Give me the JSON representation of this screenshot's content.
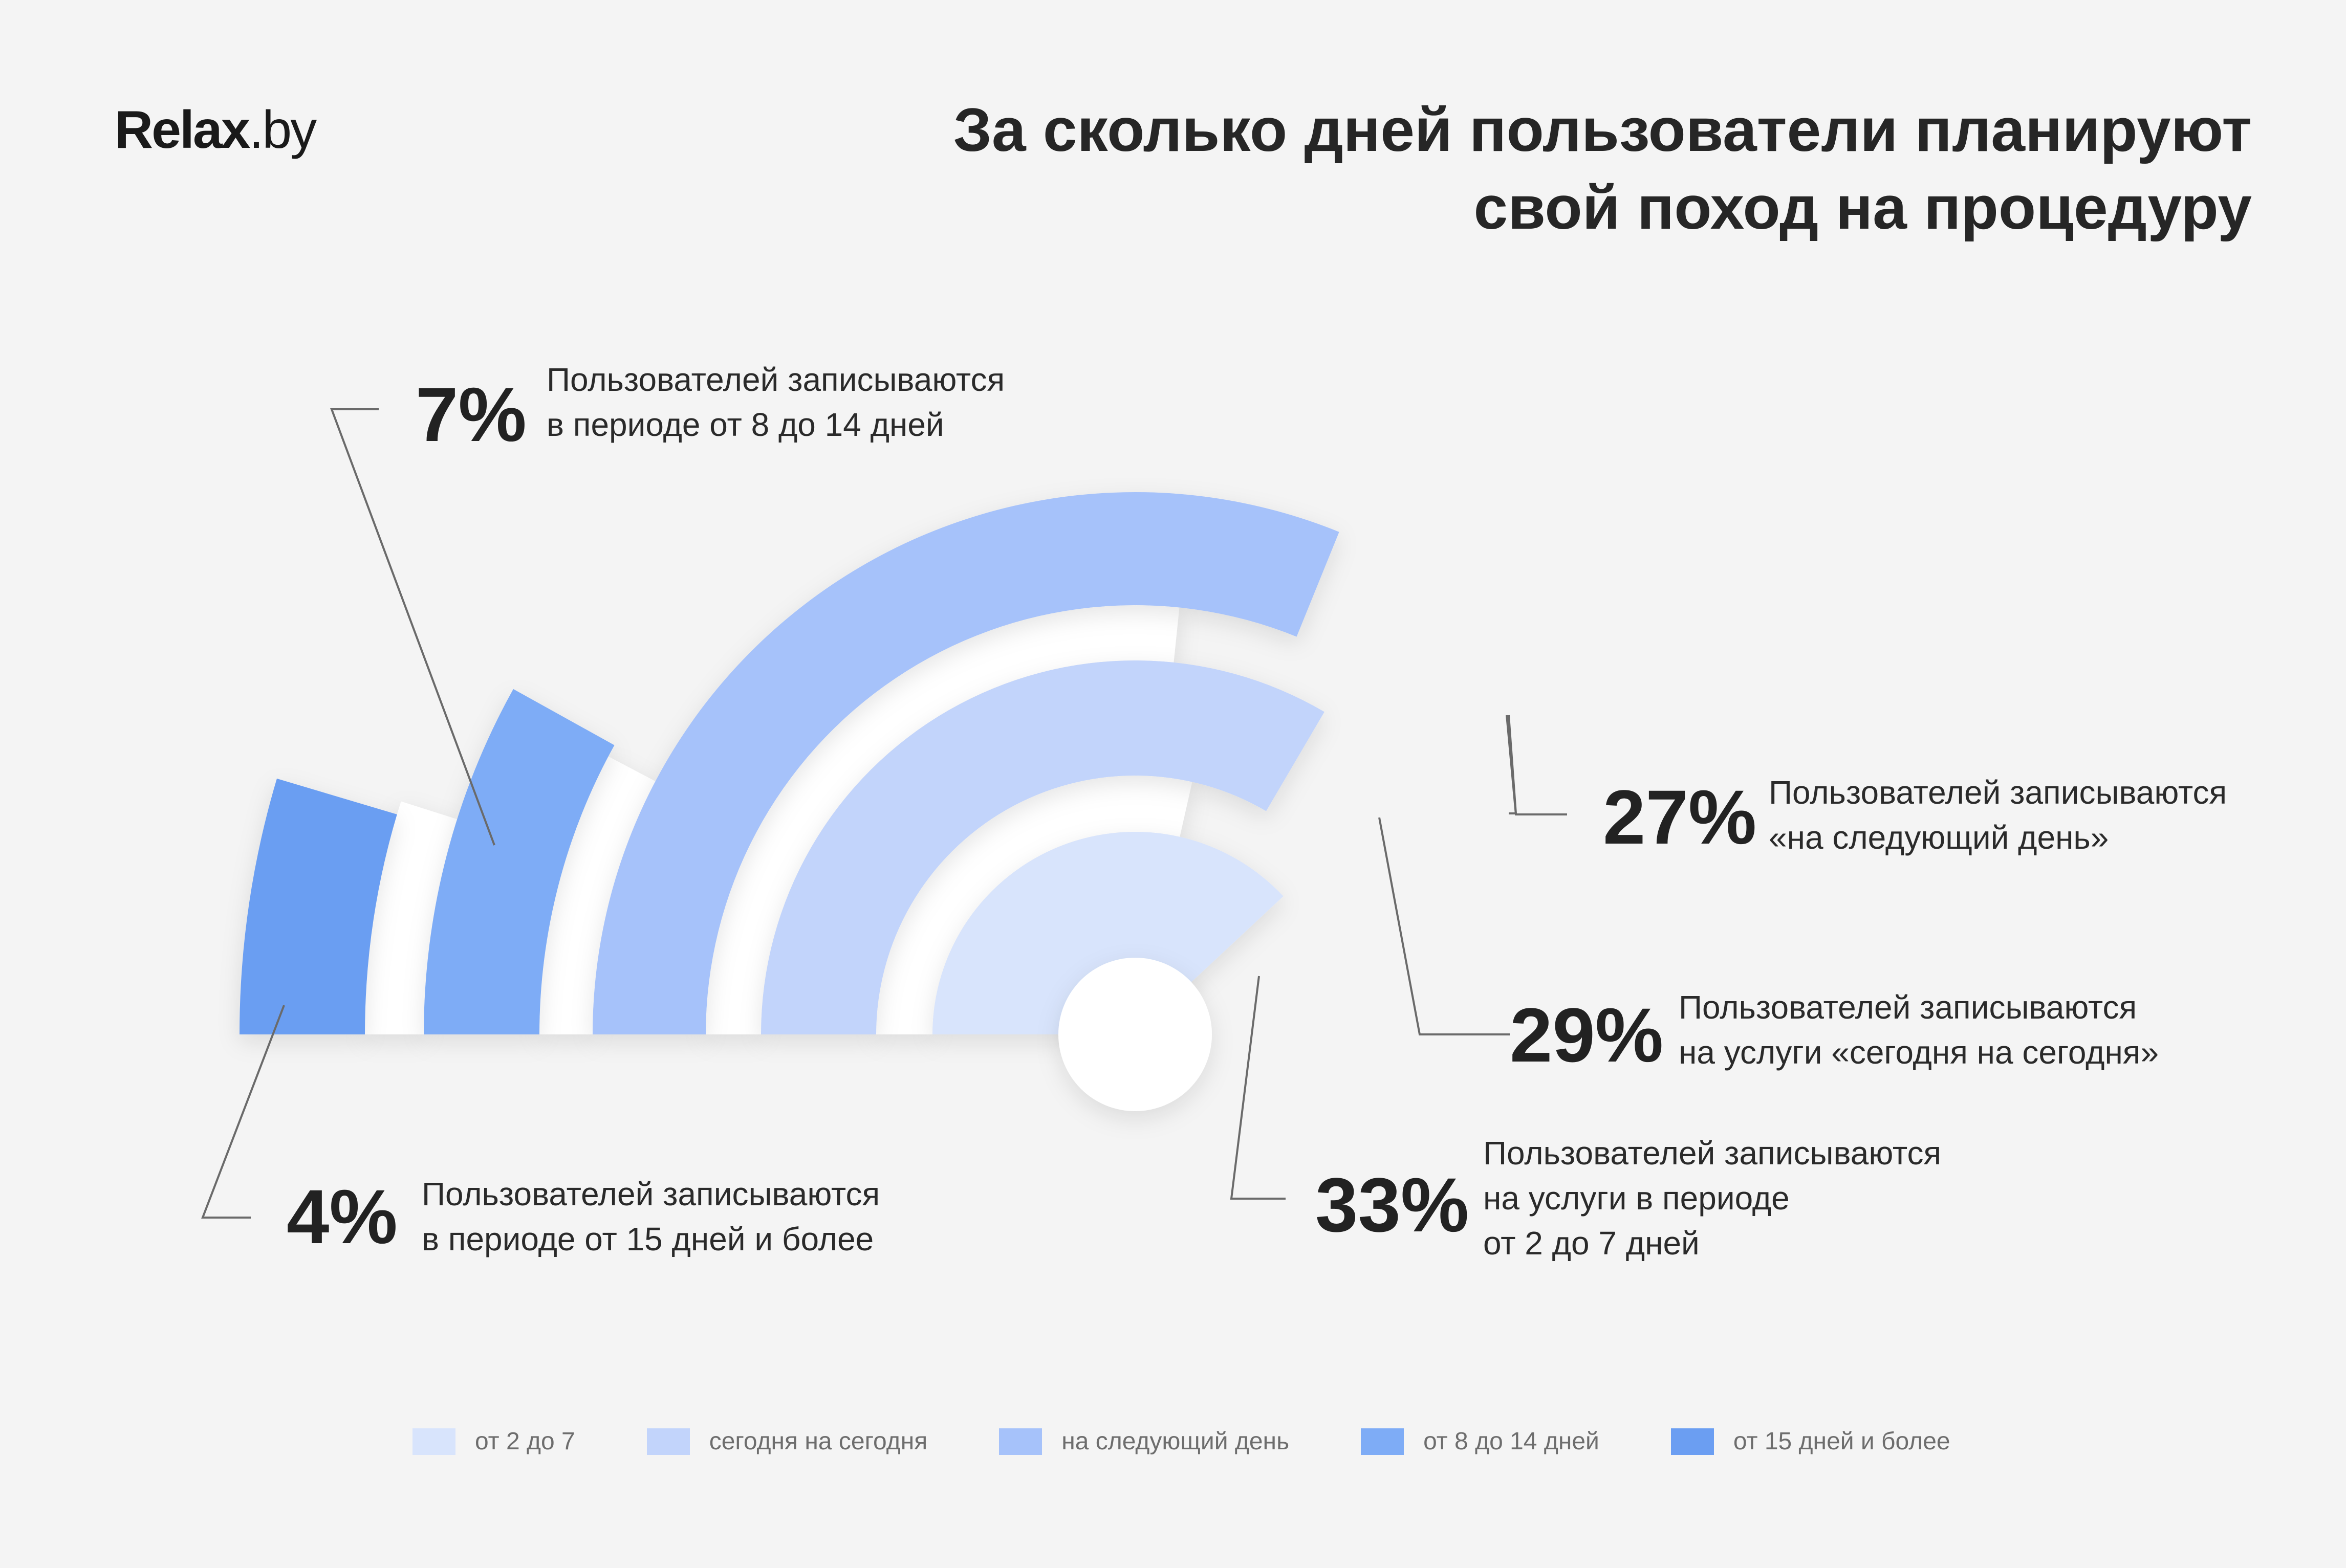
{
  "brand": {
    "logo_main": "Relax",
    "logo_suffix": ".by"
  },
  "title_lines": [
    "За сколько дней пользователи планируют",
    "свой поход на процедуру"
  ],
  "colors": {
    "background": "#f4f4f4",
    "gap": "#ffffff",
    "from_2_to_7": "#d8e4fc",
    "today": "#c2d4fb",
    "next_day": "#a6c2fa",
    "from_8_to_14": "#7eacf6",
    "from_15": "#6b9ef2"
  },
  "callouts": {
    "c7": {
      "value": "7%",
      "line1": "Пользователей записываются",
      "line2": "в периоде от 8 до 14 дней"
    },
    "c27": {
      "value": "27%",
      "line1": "Пользователей записываются",
      "line2": "«на следующий день»"
    },
    "c29": {
      "value": "29%",
      "line1": "Пользователей записываются",
      "line2": "на услуги «сегодня на сегодня»"
    },
    "c33": {
      "value": "33%",
      "line1": "Пользователей записываются",
      "line2": "на услуги в периоде",
      "line3": "от 2 до 7 дней"
    },
    "c4": {
      "value": "4%",
      "line1": "Пользователей записываются",
      "line2": "в периоде от 15 дней и более"
    }
  },
  "legend": [
    {
      "label": "от 2 до 7",
      "color": "#d8e4fc"
    },
    {
      "label": "сегодня на сегодня",
      "color": "#c2d4fb"
    },
    {
      "label": "на следующий день",
      "color": "#a6c2fa"
    },
    {
      "label": "от 8 до 14 дней",
      "color": "#7eacf6"
    },
    {
      "label": "от 15 дней и более",
      "color": "#6b9ef2"
    }
  ],
  "chart_data": {
    "type": "pie",
    "title": "За сколько дней пользователи планируют свой поход на процедуру",
    "categories": [
      "от 2 до 7",
      "сегодня на сегодня",
      "на следующий день",
      "от 8 до 14 дней",
      "от 15 дней и более"
    ],
    "values": [
      33,
      29,
      27,
      7,
      4
    ],
    "unit": "%",
    "legend_position": "bottom"
  }
}
